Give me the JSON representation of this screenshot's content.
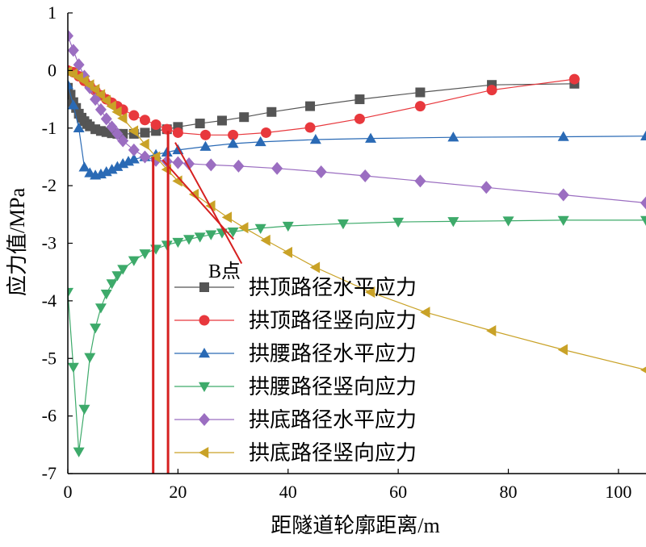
{
  "chart_data": {
    "type": "line",
    "title": "",
    "xlabel": "距隧道轮廓距离/m",
    "ylabel": "应力值/MPa",
    "xlim": [
      0,
      105
    ],
    "ylim": [
      -7,
      1
    ],
    "xticks": [
      0,
      20,
      40,
      60,
      80,
      100
    ],
    "yticks": [
      1,
      0,
      -1,
      -2,
      -3,
      -4,
      -5,
      -6,
      -7
    ],
    "grid": false,
    "legend_position": "center-left",
    "series": [
      {
        "name": "拱顶路径水平应力",
        "color": "#555555",
        "marker": "square",
        "x": [
          0,
          0.5,
          1,
          1.5,
          2,
          2.5,
          3,
          3.5,
          4,
          5,
          6,
          7,
          8,
          9,
          10,
          12,
          14,
          16,
          18,
          20,
          24,
          28,
          32,
          37,
          44,
          53,
          64,
          77,
          92
        ],
        "y": [
          -0.3,
          -0.42,
          -0.55,
          -0.65,
          -0.75,
          -0.82,
          -0.88,
          -0.93,
          -0.97,
          -1.02,
          -1.05,
          -1.07,
          -1.09,
          -1.1,
          -1.1,
          -1.1,
          -1.08,
          -1.05,
          -1.02,
          -0.98,
          -0.92,
          -0.87,
          -0.81,
          -0.72,
          -0.62,
          -0.5,
          -0.38,
          -0.25,
          -0.23
        ]
      },
      {
        "name": "拱顶路径竖向应力",
        "color": "#e8383d",
        "marker": "circle",
        "x": [
          0,
          1,
          2,
          3,
          4,
          5,
          6,
          7,
          8,
          9,
          10,
          12,
          14,
          16,
          18,
          20,
          25,
          30,
          36,
          44,
          53,
          64,
          77,
          92
        ],
        "y": [
          0.0,
          -0.03,
          -0.1,
          -0.18,
          -0.27,
          -0.35,
          -0.43,
          -0.5,
          -0.56,
          -0.62,
          -0.68,
          -0.78,
          -0.86,
          -0.94,
          -1.02,
          -1.08,
          -1.12,
          -1.12,
          -1.08,
          -0.99,
          -0.84,
          -0.62,
          -0.34,
          -0.15
        ]
      },
      {
        "name": "拱腰路径水平应力",
        "color": "#2a6ab5",
        "marker": "triangle-up",
        "x": [
          0,
          1,
          2,
          3,
          4,
          5,
          6,
          7,
          8,
          9,
          10,
          11,
          12,
          14,
          16,
          18,
          20,
          25,
          30,
          35,
          45,
          55,
          70,
          90,
          105
        ],
        "y": [
          -0.25,
          -0.6,
          -1.0,
          -1.68,
          -1.78,
          -1.82,
          -1.8,
          -1.76,
          -1.72,
          -1.67,
          -1.62,
          -1.58,
          -1.54,
          -1.5,
          -1.46,
          -1.42,
          -1.38,
          -1.32,
          -1.27,
          -1.24,
          -1.2,
          -1.18,
          -1.16,
          -1.15,
          -1.14
        ]
      },
      {
        "name": "拱腰路径竖向应力",
        "color": "#3daa6a",
        "marker": "triangle-down",
        "x": [
          0,
          1,
          2,
          3,
          4,
          5,
          6,
          7,
          8,
          9,
          10,
          12,
          14,
          16,
          18,
          20,
          22,
          24,
          26,
          28,
          30,
          35,
          40,
          50,
          60,
          70,
          80,
          90,
          105
        ],
        "y": [
          -3.85,
          -5.15,
          -6.62,
          -5.88,
          -4.98,
          -4.47,
          -4.12,
          -3.88,
          -3.7,
          -3.56,
          -3.45,
          -3.3,
          -3.18,
          -3.1,
          -3.03,
          -2.98,
          -2.93,
          -2.89,
          -2.85,
          -2.82,
          -2.8,
          -2.74,
          -2.7,
          -2.66,
          -2.63,
          -2.62,
          -2.61,
          -2.6,
          -2.6
        ]
      },
      {
        "name": "拱底路径水平应力",
        "color": "#9b6ec1",
        "marker": "diamond",
        "x": [
          0,
          1,
          2,
          3,
          4,
          5,
          6,
          7,
          8,
          9,
          10,
          12,
          14,
          16,
          18,
          20,
          22,
          26,
          31,
          38,
          46,
          54,
          64,
          76,
          90,
          105
        ],
        "y": [
          0.6,
          0.35,
          0.1,
          -0.1,
          -0.3,
          -0.5,
          -0.68,
          -0.84,
          -0.98,
          -1.1,
          -1.22,
          -1.38,
          -1.5,
          -1.56,
          -1.58,
          -1.6,
          -1.62,
          -1.64,
          -1.66,
          -1.7,
          -1.76,
          -1.83,
          -1.92,
          -2.03,
          -2.16,
          -2.3
        ]
      },
      {
        "name": "拱底路径竖向应力",
        "color": "#c9a227",
        "marker": "triangle-left",
        "x": [
          0,
          1,
          2,
          3,
          4,
          5,
          6,
          7,
          8,
          9,
          10,
          12,
          14,
          16,
          18,
          20,
          23,
          26,
          29,
          32,
          36,
          40,
          45,
          55,
          65,
          77,
          90,
          105
        ],
        "y": [
          -0.02,
          -0.06,
          -0.12,
          -0.18,
          -0.25,
          -0.33,
          -0.42,
          -0.52,
          -0.62,
          -0.72,
          -0.83,
          -1.05,
          -1.28,
          -1.5,
          -1.72,
          -1.92,
          -2.15,
          -2.35,
          -2.55,
          -2.73,
          -2.95,
          -3.16,
          -3.42,
          -3.85,
          -4.2,
          -4.52,
          -4.85,
          -5.2
        ]
      }
    ],
    "annotations": [
      {
        "text": "B点"
      }
    ],
    "reference_lines": {
      "vertical_x": [
        15.5,
        18.2
      ],
      "color": "#d62020"
    }
  }
}
